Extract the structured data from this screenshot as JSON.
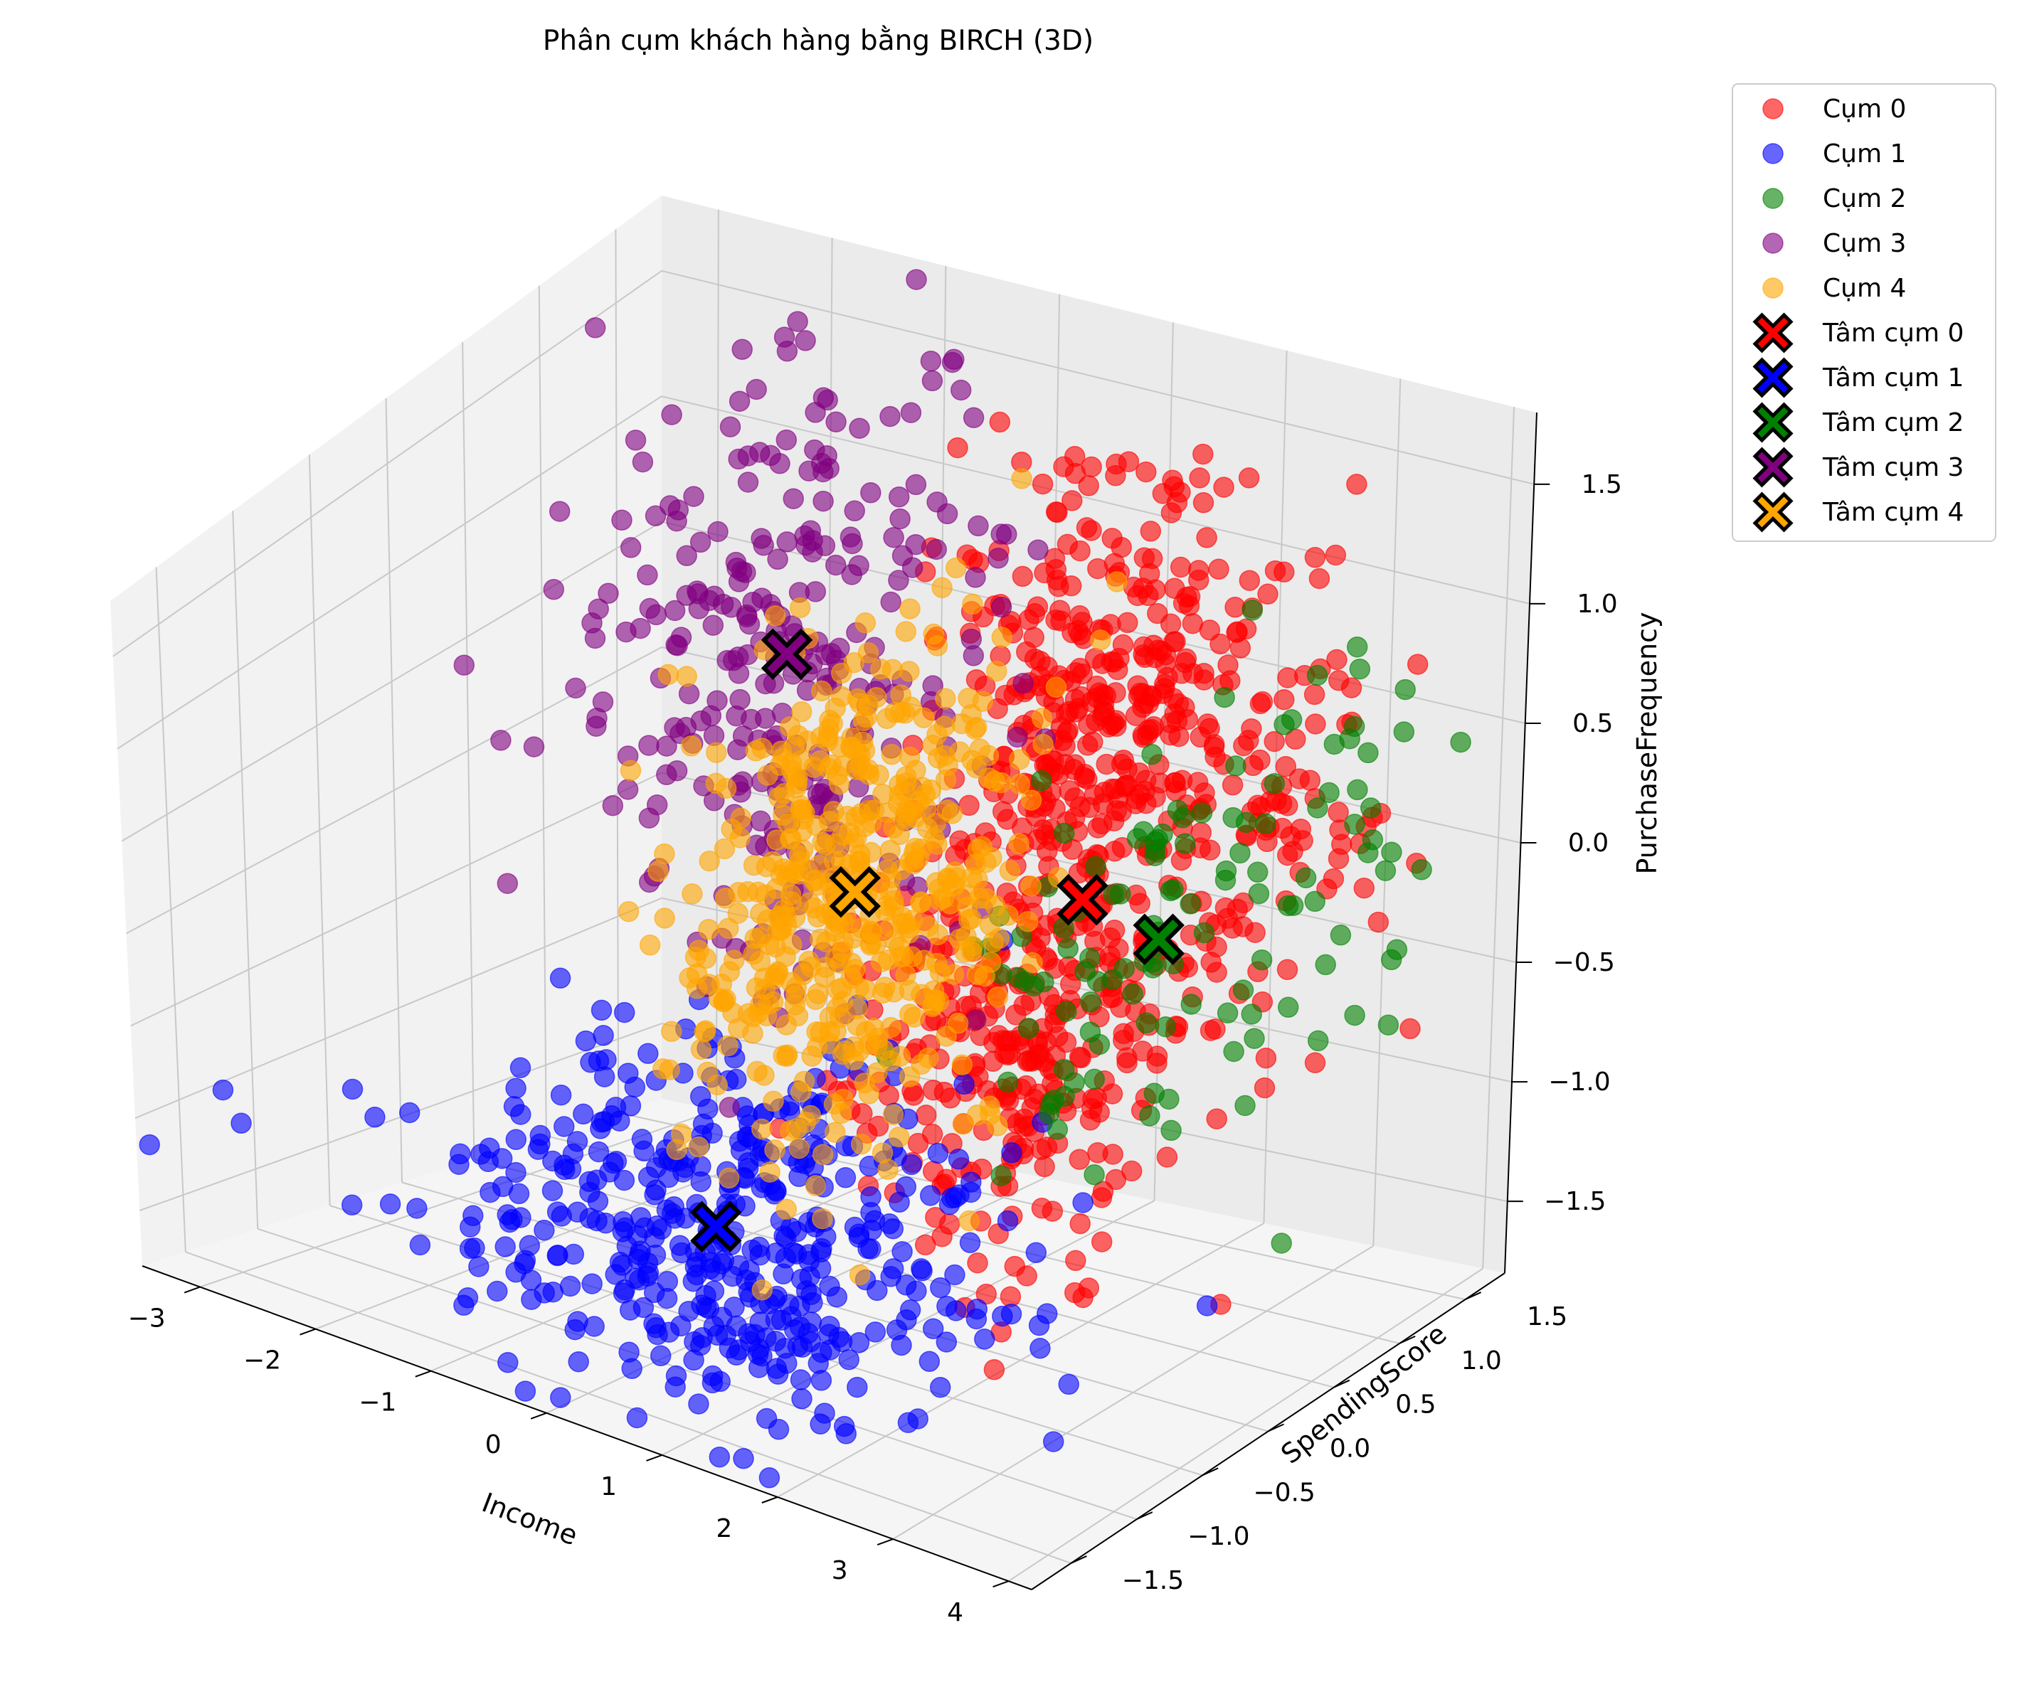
{
  "chart_data": {
    "type": "scatter",
    "projection": "3d",
    "title": "Phân cụm khách hàng bằng BIRCH (3D)",
    "xlabel": "Income",
    "ylabel": "SpendingScore",
    "zlabel": "PurchaseFrequency",
    "xlim": [
      -3.5,
      4.2
    ],
    "ylim": [
      -1.8,
      1.8
    ],
    "zlim": [
      -1.8,
      1.8
    ],
    "x_ticks": [
      "−3",
      "−2",
      "−1",
      "0",
      "1",
      "2",
      "3",
      "4"
    ],
    "y_ticks": [
      "−1.5",
      "−1.0",
      "−0.5",
      "0.0",
      "0.5",
      "1.0",
      "1.5"
    ],
    "z_ticks": [
      "−1.5",
      "−1.0",
      "−0.5",
      "0.0",
      "0.5",
      "1.0",
      "1.5"
    ],
    "grid": true,
    "legend_position": "outside top-right",
    "series": [
      {
        "name": "Cụm 0",
        "color": "#ff0000",
        "marker": "circle",
        "opacity": 0.6,
        "clusters": [
          {
            "center": [
              1.4,
              1.0,
              0.7
            ],
            "spread": [
              0.45,
              0.35,
              0.55
            ],
            "count": 320
          },
          {
            "center": [
              1.8,
              0.2,
              -0.3
            ],
            "spread": [
              0.5,
              0.45,
              0.55
            ],
            "count": 320
          },
          {
            "center": [
              2.4,
              1.3,
              0.3
            ],
            "spread": [
              0.45,
              0.3,
              0.5
            ],
            "count": 140
          }
        ]
      },
      {
        "name": "Cụm 1",
        "color": "#0000ff",
        "marker": "circle",
        "opacity": 0.6,
        "clusters": [
          {
            "center": [
              0.3,
              -0.8,
              -1.1
            ],
            "spread": [
              1.1,
              0.5,
              0.4
            ],
            "count": 460
          }
        ]
      },
      {
        "name": "Cụm 2",
        "color": "#008000",
        "marker": "circle",
        "opacity": 0.6,
        "clusters": [
          {
            "center": [
              2.3,
              0.3,
              0.0
            ],
            "spread": [
              0.35,
              0.55,
              0.45
            ],
            "count": 70
          },
          {
            "center": [
              3.3,
              0.9,
              0.2
            ],
            "spread": [
              0.4,
              0.4,
              0.6
            ],
            "count": 55
          }
        ]
      },
      {
        "name": "Cụm 3",
        "color": "#800080",
        "marker": "circle",
        "opacity": 0.6,
        "clusters": [
          {
            "center": [
              -1.2,
              0.9,
              0.6
            ],
            "spread": [
              0.8,
              0.45,
              0.6
            ],
            "count": 300
          }
        ]
      },
      {
        "name": "Cụm 4",
        "color": "#ffa500",
        "marker": "circle",
        "opacity": 0.6,
        "clusters": [
          {
            "center": [
              0.3,
              0.2,
              0.1
            ],
            "spread": [
              0.45,
              0.45,
              0.55
            ],
            "count": 520
          }
        ]
      }
    ],
    "centroids": [
      {
        "name": "Tâm cụm 0",
        "color": "#ff0000",
        "marker": "X",
        "value": [
          1.8,
          0.6,
          0.1
        ]
      },
      {
        "name": "Tâm cụm 1",
        "color": "#0000ff",
        "marker": "X",
        "value": [
          0.3,
          -0.8,
          -1.1
        ]
      },
      {
        "name": "Tâm cụm 2",
        "color": "#008000",
        "marker": "X",
        "value": [
          2.6,
          0.5,
          0.1
        ]
      },
      {
        "name": "Tâm cụm 3",
        "color": "#800080",
        "marker": "X",
        "value": [
          -1.2,
          0.9,
          0.6
        ]
      },
      {
        "name": "Tâm cụm 4",
        "color": "#ffa500",
        "marker": "X",
        "value": [
          0.3,
          0.2,
          0.1
        ]
      }
    ]
  }
}
